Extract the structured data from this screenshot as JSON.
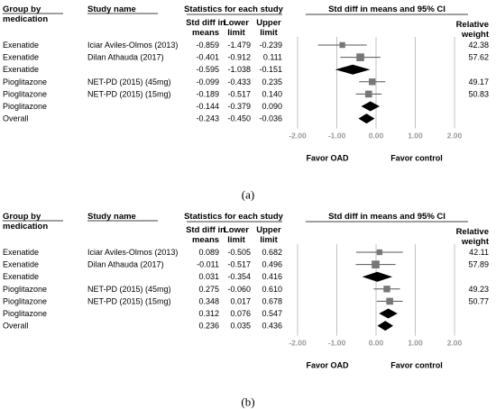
{
  "chart_data": [
    {
      "type": "forest",
      "caption": "(a)",
      "columns": {
        "group": "Group by medication",
        "study": "Study name",
        "stats": "Statistics for each study",
        "smd": "Std diff in means",
        "lower": "Lower limit",
        "upper": "Upper limit",
        "plot": "Std diff in means and 95% CI",
        "weight": "Relative weight"
      },
      "rows": [
        {
          "group": "Exenatide",
          "study": "Iciar Aviles-Olmos (2013)",
          "smd": "-0.859",
          "lower": "-1.479",
          "upper": "-0.239",
          "weight": "42.38",
          "kind": "study"
        },
        {
          "group": "Exenatide",
          "study": "Dilan Athauda (2017)",
          "smd": "-0.401",
          "lower": "-0.912",
          "upper": "0.111",
          "weight": "57.62",
          "kind": "study"
        },
        {
          "group": "Exenatide",
          "study": "",
          "smd": "-0.595",
          "lower": "-1.038",
          "upper": "-0.151",
          "weight": "",
          "kind": "summary"
        },
        {
          "group": "Pioglitazone",
          "study": "NET-PD (2015) (45mg)",
          "smd": "-0.099",
          "lower": "-0.433",
          "upper": "0.235",
          "weight": "49.17",
          "kind": "study"
        },
        {
          "group": "Pioglitazone",
          "study": "NET-PD (2015) (15mg)",
          "smd": "-0.189",
          "lower": "-0.517",
          "upper": "0.140",
          "weight": "50.83",
          "kind": "study"
        },
        {
          "group": "Pioglitazone",
          "study": "",
          "smd": "-0.144",
          "lower": "-0.379",
          "upper": "0.090",
          "weight": "",
          "kind": "summary"
        },
        {
          "group": "Overall",
          "study": "",
          "smd": "-0.243",
          "lower": "-0.450",
          "upper": "-0.036",
          "weight": "",
          "kind": "summary"
        }
      ],
      "x_ticks": [
        "-2.00",
        "-1.00",
        "0.00",
        "1.00",
        "2.00"
      ],
      "xlim": [
        -2,
        2
      ],
      "favor_left": "Favor OAD",
      "favor_right": "Favor control"
    },
    {
      "type": "forest",
      "caption": "(b)",
      "columns": {
        "group": "Group by medication",
        "study": "Study name",
        "stats": "Statistics for each study",
        "smd": "Std diff in means",
        "lower": "Lower limit",
        "upper": "Upper limit",
        "plot": "Std diff in means and 95% CI",
        "weight": "Relative weight"
      },
      "rows": [
        {
          "group": "Exenatide",
          "study": "Iciar Aviles-Olmos (2013)",
          "smd": "0.089",
          "lower": "-0.505",
          "upper": "0.682",
          "weight": "42.11",
          "kind": "study"
        },
        {
          "group": "Exenatide",
          "study": "Dilan Athauda (2017)",
          "smd": "-0.011",
          "lower": "-0.517",
          "upper": "0.496",
          "weight": "57.89",
          "kind": "study"
        },
        {
          "group": "Exenatide",
          "study": "",
          "smd": "0.031",
          "lower": "-0.354",
          "upper": "0.416",
          "weight": "",
          "kind": "summary"
        },
        {
          "group": "Pioglitazone",
          "study": "NET-PD (2015) (45mg)",
          "smd": "0.275",
          "lower": "-0.060",
          "upper": "0.610",
          "weight": "49.23",
          "kind": "study"
        },
        {
          "group": "Pioglitazone",
          "study": "NET-PD (2015) (15mg)",
          "smd": "0.348",
          "lower": "0.017",
          "upper": "0.678",
          "weight": "50.77",
          "kind": "study"
        },
        {
          "group": "Pioglitazone",
          "study": "",
          "smd": "0.312",
          "lower": "0.076",
          "upper": "0.547",
          "weight": "",
          "kind": "summary"
        },
        {
          "group": "Overall",
          "study": "",
          "smd": "0.236",
          "lower": "0.035",
          "upper": "0.436",
          "weight": "",
          "kind": "summary"
        }
      ],
      "x_ticks": [
        "-2.00",
        "-1.00",
        "0.00",
        "1.00",
        "2.00"
      ],
      "xlim": [
        -2,
        2
      ],
      "favor_left": "Favor OAD",
      "favor_right": "Favor control"
    }
  ]
}
